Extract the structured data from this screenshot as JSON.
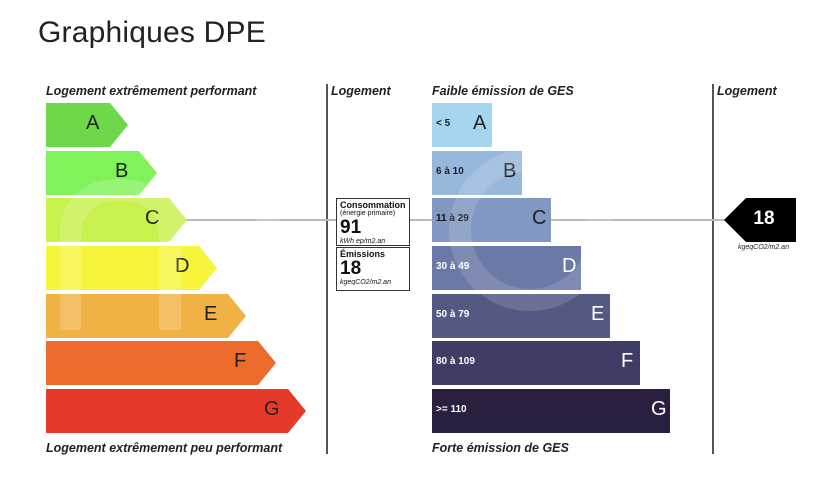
{
  "title": "Graphiques DPE",
  "energy": {
    "top_label": "Logement extrêmement performant",
    "bottom_label": "Logement extrêmement peu performant",
    "column_label": "Logement",
    "classes": [
      {
        "letter": "A",
        "color": "#6dd84a"
      },
      {
        "letter": "B",
        "color": "#80f25a"
      },
      {
        "letter": "C",
        "color": "#c8f24d"
      },
      {
        "letter": "D",
        "color": "#f7f43c"
      },
      {
        "letter": "E",
        "color": "#f1b245"
      },
      {
        "letter": "F",
        "color": "#ec6b2d"
      },
      {
        "letter": "G",
        "color": "#e53a2a"
      }
    ],
    "selected": "C",
    "consumption": {
      "title": "Consommation",
      "subtitle": "(énergie primaire)",
      "value": "91",
      "unit": "kWh ep/m2.an"
    },
    "emissions": {
      "title": "Émissions",
      "value": "18",
      "unit": "kgeqCO2/m2.an"
    }
  },
  "ges": {
    "top_label": "Faible émission de GES",
    "bottom_label": "Forte émission de GES",
    "column_label": "Logement",
    "classes": [
      {
        "letter": "A",
        "range": "< 5",
        "color": "#a6d5f0"
      },
      {
        "letter": "B",
        "range": "6 à 10",
        "color": "#97b8dc"
      },
      {
        "letter": "C",
        "range": "11 à 29",
        "color": "#8098c2"
      },
      {
        "letter": "D",
        "range": "30 à 49",
        "color": "#6a79a6"
      },
      {
        "letter": "E",
        "range": "50 à 79",
        "color": "#525a83"
      },
      {
        "letter": "F",
        "range": "80 à 109",
        "color": "#3e3e64"
      },
      {
        "letter": "G",
        "range": ">= 110",
        "color": "#2b1f40"
      }
    ],
    "selected": "C",
    "value": "18",
    "unit": "kgeqCO2/m2.an"
  }
}
